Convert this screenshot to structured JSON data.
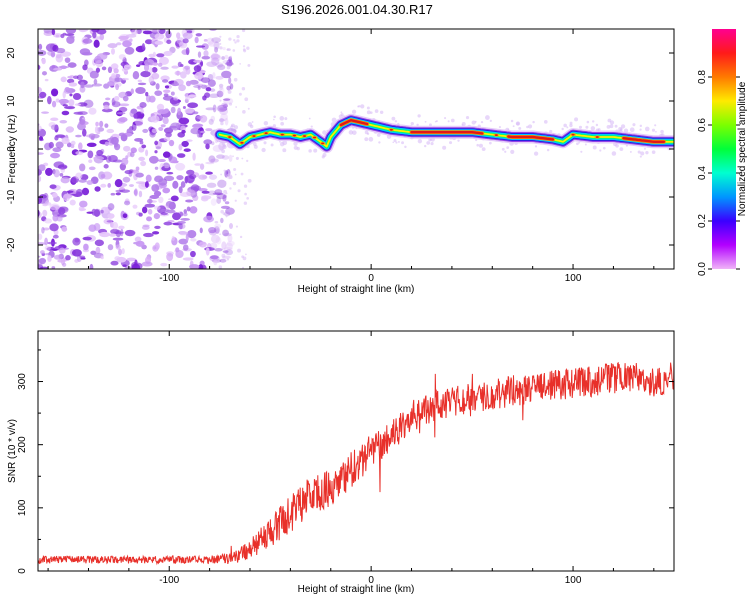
{
  "title": "S196.2026.001.04.30.R17",
  "chart_data": [
    {
      "type": "heatmap",
      "xlabel": "Height of straight line (km)",
      "ylabel": "Frequency (Hz)",
      "xlim": [
        -165,
        150
      ],
      "ylim": [
        -25,
        25
      ],
      "xticks": [
        -100,
        0,
        100
      ],
      "yticks": [
        -20,
        -10,
        0,
        10,
        20
      ],
      "noise_region_x": [
        -165,
        -75
      ],
      "ridge": {
        "x": [
          -75,
          -70,
          -65,
          -60,
          -55,
          -50,
          -45,
          -40,
          -35,
          -30,
          -25,
          -22,
          -20,
          -15,
          -10,
          -5,
          0,
          5,
          10,
          20,
          30,
          40,
          50,
          60,
          70,
          80,
          90,
          95,
          100,
          110,
          120,
          130,
          140,
          150
        ],
        "y": [
          3,
          2.5,
          1,
          2.5,
          3,
          3.5,
          3,
          3,
          2.5,
          3,
          1.5,
          0.5,
          2.5,
          5,
          6,
          5.5,
          5,
          4.5,
          4,
          3.5,
          3.5,
          3.5,
          3.5,
          3,
          2.5,
          2.5,
          2,
          1.5,
          3,
          2.5,
          2.5,
          2,
          1.5,
          1.5
        ]
      },
      "hot_segments_x": [
        [
          -15,
          -2
        ],
        [
          20,
          55
        ],
        [
          68,
          90
        ],
        [
          125,
          145
        ]
      ],
      "colorbar": {
        "label": "Normalized spectral amplitude",
        "range": [
          0,
          1
        ],
        "ticks": [
          0.0,
          0.2,
          0.4,
          0.6,
          0.8
        ]
      }
    },
    {
      "type": "line",
      "xlabel": "Height of straight line (km)",
      "ylabel": "SNR (10 * v/v)",
      "xlim": [
        -165,
        150
      ],
      "ylim": [
        0,
        380
      ],
      "xticks": [
        -100,
        0,
        100
      ],
      "yticks": [
        0,
        100,
        200,
        300
      ],
      "series": [
        {
          "name": "SNR",
          "color": "#e8302a",
          "envelope_x": [
            -165,
            -80,
            -68,
            -60,
            -50,
            -40,
            -30,
            -20,
            -10,
            0,
            10,
            20,
            30,
            40,
            50,
            60,
            70,
            80,
            90,
            100,
            110,
            120,
            130,
            140,
            150
          ],
          "envelope_y": [
            18,
            18,
            20,
            35,
            60,
            90,
            120,
            130,
            160,
            190,
            215,
            240,
            260,
            270,
            275,
            280,
            285,
            290,
            295,
            295,
            300,
            305,
            305,
            300,
            310
          ],
          "noise_y": [
            6,
            6,
            10,
            15,
            25,
            30,
            30,
            30,
            30,
            28,
            25,
            25,
            25,
            25,
            25,
            25,
            25,
            25,
            25,
            25,
            25,
            25,
            25,
            25,
            25
          ]
        }
      ]
    }
  ]
}
